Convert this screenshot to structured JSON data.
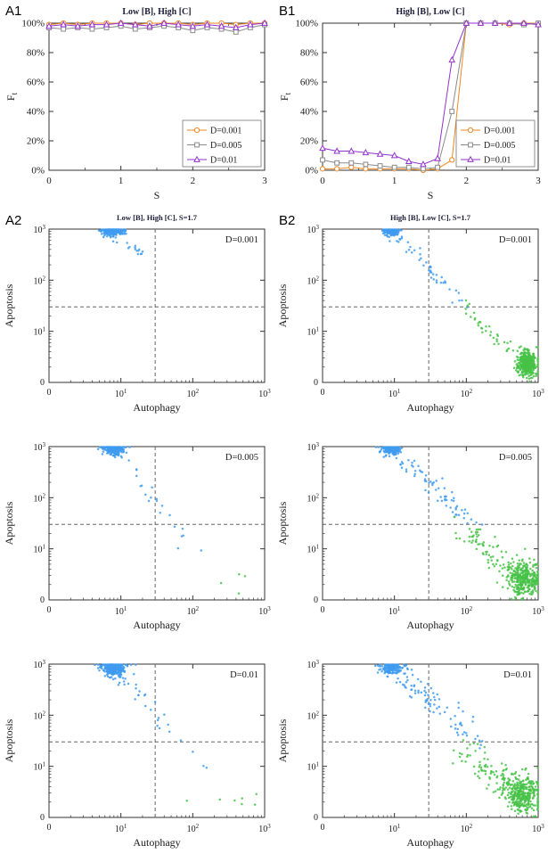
{
  "colors": {
    "orange": "#EE8822",
    "gray": "#8A8A8A",
    "purple": "#9232CE",
    "blue": "#3E9BF0",
    "green": "#46C246",
    "axis": "#333333",
    "dash": "#666666",
    "title": "#1c1c38",
    "text": "#1a1a1a"
  },
  "chart_data": [
    {
      "type": "line",
      "panel_label": "A1",
      "title": "Low [B], High [C]",
      "xlabel": "S",
      "ylabel": "F_t",
      "xlim": [
        0,
        3
      ],
      "ylim": [
        0,
        100
      ],
      "xticks": [
        0,
        1,
        2,
        3
      ],
      "ytick_labels": [
        "0%",
        "20%",
        "40%",
        "60%",
        "80%",
        "100%"
      ],
      "legend_position": "bottom-right",
      "x": [
        0,
        0.2,
        0.4,
        0.6,
        0.8,
        1,
        1.2,
        1.4,
        1.6,
        1.8,
        2,
        2.2,
        2.4,
        2.6,
        2.8,
        3
      ],
      "series": [
        {
          "name": "D=0.001",
          "color": "orange",
          "marker": "circle",
          "values": [
            99,
            100,
            99,
            100,
            100,
            100,
            99,
            100,
            100,
            100,
            99,
            100,
            100,
            99,
            100,
            100
          ]
        },
        {
          "name": "D=0.005",
          "color": "gray",
          "marker": "square",
          "values": [
            97,
            96,
            97,
            96,
            97,
            98,
            96,
            97,
            98,
            97,
            95,
            97,
            96,
            94,
            97,
            99
          ]
        },
        {
          "name": "D=0.01",
          "color": "purple",
          "marker": "triangle",
          "values": [
            98,
            99,
            98,
            99,
            99,
            100,
            99,
            98,
            100,
            99,
            98,
            99,
            98,
            97,
            99,
            100
          ]
        }
      ]
    },
    {
      "type": "line",
      "panel_label": "B1",
      "title": "High [B], Low [C]",
      "xlabel": "S",
      "ylabel": "F_t",
      "xlim": [
        0,
        3
      ],
      "ylim": [
        0,
        100
      ],
      "xticks": [
        0,
        1,
        2,
        3
      ],
      "ytick_labels": [
        "0%",
        "20%",
        "40%",
        "60%",
        "80%",
        "100%"
      ],
      "legend_position": "bottom-right",
      "x": [
        0,
        0.2,
        0.4,
        0.6,
        0.8,
        1,
        1.2,
        1.4,
        1.6,
        1.8,
        2,
        2.2,
        2.4,
        2.6,
        2.8,
        3
      ],
      "series": [
        {
          "name": "D=0.001",
          "color": "orange",
          "marker": "circle",
          "values": [
            1,
            1,
            2,
            1,
            1,
            1,
            1,
            0,
            1,
            7,
            100,
            100,
            100,
            99,
            100,
            100
          ]
        },
        {
          "name": "D=0.005",
          "color": "gray",
          "marker": "square",
          "values": [
            7,
            5,
            5,
            4,
            3,
            2,
            2,
            1,
            2,
            40,
            100,
            100,
            100,
            100,
            99,
            100
          ]
        },
        {
          "name": "D=0.01",
          "color": "purple",
          "marker": "triangle",
          "values": [
            15,
            13,
            13,
            12,
            11,
            10,
            6,
            4,
            8,
            75,
            100,
            100,
            100,
            100,
            100,
            99
          ]
        }
      ]
    },
    {
      "type": "scatter-grid",
      "panel_label": "A2",
      "title": "Low [B], High [C], S=1.7",
      "xlabel": "Autophagy",
      "ylabel": "Apoptosis",
      "axis_ticks": [
        "0",
        "10^1",
        "10^2",
        "10^3"
      ],
      "xlim_log": [
        0,
        3
      ],
      "ylim_log": [
        0,
        3
      ],
      "threshold": 30,
      "rows": [
        {
          "annotation": "D=0.001",
          "clusters": [
            {
              "type": "blob",
              "color": "blue",
              "n": 260,
              "cx": 0.88,
              "cy": 2.97,
              "sx": 0.075,
              "sy": 0.05
            },
            {
              "type": "line",
              "color": "blue",
              "n": 16,
              "x1": 0.95,
              "y1": 2.88,
              "x2": 1.35,
              "y2": 2.5,
              "jitter": 0.06
            }
          ]
        },
        {
          "annotation": "D=0.005",
          "clusters": [
            {
              "type": "blob",
              "color": "blue",
              "n": 260,
              "cx": 0.9,
              "cy": 2.95,
              "sx": 0.08,
              "sy": 0.06
            },
            {
              "type": "line",
              "color": "blue",
              "n": 22,
              "x1": 0.95,
              "y1": 2.85,
              "x2": 2.05,
              "y2": 1.05,
              "jitter": 0.07
            },
            {
              "type": "blob",
              "color": "green",
              "n": 4,
              "cx": 2.72,
              "cy": 0.35,
              "sx": 0.12,
              "sy": 0.18
            }
          ]
        },
        {
          "annotation": "D=0.01",
          "clusters": [
            {
              "type": "blob",
              "color": "blue",
              "n": 270,
              "cx": 0.9,
              "cy": 2.93,
              "sx": 0.09,
              "sy": 0.08
            },
            {
              "type": "line",
              "color": "blue",
              "n": 30,
              "x1": 0.95,
              "y1": 2.85,
              "x2": 2.1,
              "y2": 0.95,
              "jitter": 0.08
            },
            {
              "type": "blob",
              "color": "green",
              "n": 7,
              "cx": 2.6,
              "cy": 0.3,
              "sx": 0.2,
              "sy": 0.15
            }
          ]
        }
      ]
    },
    {
      "type": "scatter-grid",
      "panel_label": "B2",
      "title": "High [B], Low [C], S=1.7",
      "xlabel": "Autophagy",
      "ylabel": "Apoptosis",
      "axis_ticks": [
        "0",
        "10^1",
        "10^2",
        "10^3"
      ],
      "xlim_log": [
        0,
        3
      ],
      "ylim_log": [
        0,
        3
      ],
      "threshold": 30,
      "rows": [
        {
          "annotation": "D=0.001",
          "clusters": [
            {
              "type": "blob",
              "color": "blue",
              "n": 160,
              "cx": 0.95,
              "cy": 2.96,
              "sx": 0.06,
              "sy": 0.04
            },
            {
              "type": "line",
              "color": "blue",
              "n": 45,
              "x1": 1.0,
              "y1": 2.9,
              "x2": 1.95,
              "y2": 1.55,
              "jitter": 0.05
            },
            {
              "type": "line",
              "color": "green",
              "n": 35,
              "x1": 2.0,
              "y1": 1.45,
              "x2": 2.65,
              "y2": 0.6,
              "jitter": 0.07
            },
            {
              "type": "blob",
              "color": "green",
              "n": 380,
              "cx": 2.85,
              "cy": 0.38,
              "sx": 0.07,
              "sy": 0.13
            }
          ]
        },
        {
          "annotation": "D=0.005",
          "clusters": [
            {
              "type": "blob",
              "color": "blue",
              "n": 150,
              "cx": 0.95,
              "cy": 2.94,
              "sx": 0.07,
              "sy": 0.05
            },
            {
              "type": "line",
              "color": "blue",
              "n": 70,
              "x1": 1.0,
              "y1": 2.88,
              "x2": 2.15,
              "y2": 1.5,
              "jitter": 0.08
            },
            {
              "type": "line",
              "color": "green",
              "n": 80,
              "x1": 1.95,
              "y1": 1.4,
              "x2": 2.75,
              "y2": 0.45,
              "jitter": 0.1
            },
            {
              "type": "blob",
              "color": "green",
              "n": 340,
              "cx": 2.8,
              "cy": 0.42,
              "sx": 0.11,
              "sy": 0.17
            }
          ]
        },
        {
          "annotation": "D=0.01",
          "clusters": [
            {
              "type": "blob",
              "color": "blue",
              "n": 140,
              "cx": 0.95,
              "cy": 2.92,
              "sx": 0.08,
              "sy": 0.06
            },
            {
              "type": "line",
              "color": "blue",
              "n": 90,
              "x1": 1.0,
              "y1": 2.85,
              "x2": 2.2,
              "y2": 1.5,
              "jitter": 0.1
            },
            {
              "type": "line",
              "color": "green",
              "n": 110,
              "x1": 1.95,
              "y1": 1.35,
              "x2": 2.8,
              "y2": 0.4,
              "jitter": 0.12
            },
            {
              "type": "blob",
              "color": "green",
              "n": 320,
              "cx": 2.78,
              "cy": 0.45,
              "sx": 0.13,
              "sy": 0.19
            }
          ]
        }
      ]
    }
  ]
}
